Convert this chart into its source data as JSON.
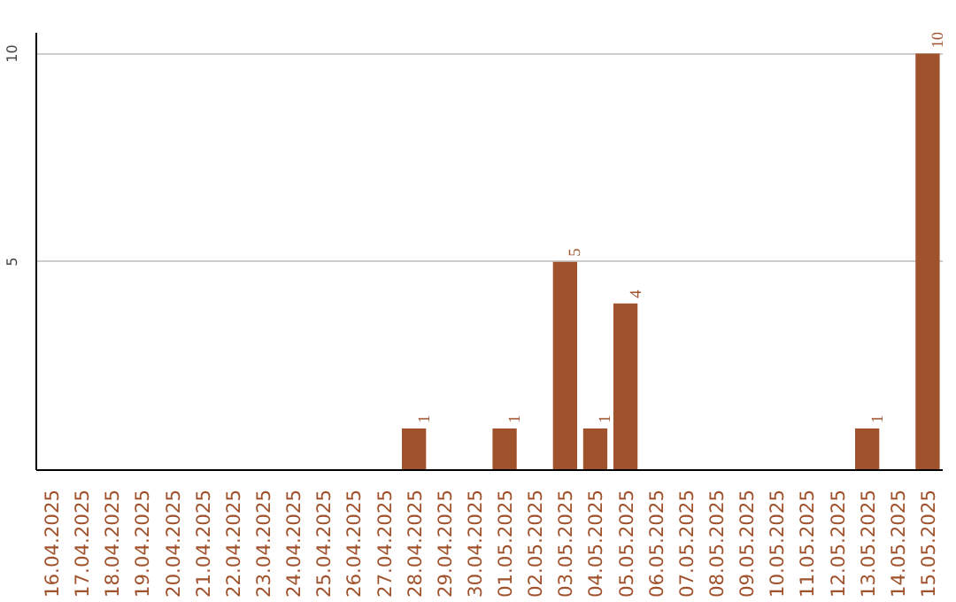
{
  "chart_data": {
    "type": "bar",
    "categories": [
      "16.04.2025",
      "17.04.2025",
      "18.04.2025",
      "19.04.2025",
      "20.04.2025",
      "21.04.2025",
      "22.04.2025",
      "23.04.2025",
      "24.04.2025",
      "25.04.2025",
      "26.04.2025",
      "27.04.2025",
      "28.04.2025",
      "29.04.2025",
      "30.04.2025",
      "01.05.2025",
      "02.05.2025",
      "03.05.2025",
      "04.05.2025",
      "05.05.2025",
      "06.05.2025",
      "07.05.2025",
      "08.05.2025",
      "09.05.2025",
      "10.05.2025",
      "11.05.2025",
      "12.05.2025",
      "13.05.2025",
      "14.05.2025",
      "15.05.2025"
    ],
    "values": [
      0,
      0,
      0,
      0,
      0,
      0,
      0,
      0,
      0,
      0,
      0,
      0,
      1,
      0,
      0,
      1,
      0,
      5,
      1,
      4,
      0,
      0,
      0,
      0,
      0,
      0,
      0,
      1,
      0,
      10
    ],
    "value_labels": [
      null,
      null,
      null,
      null,
      null,
      null,
      null,
      null,
      null,
      null,
      null,
      null,
      "1",
      null,
      null,
      "1",
      null,
      "5",
      "1",
      "4",
      null,
      null,
      null,
      null,
      null,
      null,
      null,
      "1",
      null,
      "10"
    ],
    "color": "#a0522d",
    "ylim": [
      0,
      10.5
    ],
    "yticks": [
      5,
      10
    ],
    "grid": "y"
  }
}
